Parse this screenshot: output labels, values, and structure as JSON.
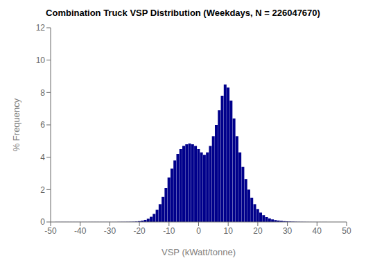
{
  "chart_data": {
    "type": "bar",
    "title": "Combination Truck VSP Distribution (Weekdays, N = 226047670)",
    "xlabel": "VSP (kWatt/tonne)",
    "ylabel": "% Frequency",
    "x": [
      -48,
      -47,
      -46,
      -45,
      -44,
      -43,
      -42,
      -41,
      -40,
      -39,
      -38,
      -37,
      -36,
      -35,
      -34,
      -33,
      -32,
      -31,
      -30,
      -29,
      -28,
      -27,
      -26,
      -25,
      -24,
      -23,
      -22,
      -21,
      -20,
      -19,
      -18,
      -17,
      -16,
      -15,
      -14,
      -13,
      -12,
      -11,
      -10,
      -9,
      -8,
      -7,
      -6,
      -5,
      -4,
      -3,
      -2,
      -1,
      0,
      1,
      2,
      3,
      4,
      5,
      6,
      7,
      8,
      9,
      10,
      11,
      12,
      13,
      14,
      15,
      16,
      17,
      18,
      19,
      20,
      21,
      22,
      23,
      24,
      25,
      26,
      27,
      28,
      29,
      30,
      31,
      32,
      33,
      34,
      35,
      36,
      37,
      38,
      39,
      40,
      41,
      42,
      43,
      44,
      45,
      46,
      47,
      48
    ],
    "values": [
      0.005,
      0.005,
      0.005,
      0.005,
      0.005,
      0.005,
      0.005,
      0.005,
      0.005,
      0.005,
      0.005,
      0.005,
      0.005,
      0.005,
      0.005,
      0.005,
      0.005,
      0.005,
      0.005,
      0.005,
      0.005,
      0.008,
      0.01,
      0.01,
      0.012,
      0.015,
      0.02,
      0.03,
      0.05,
      0.08,
      0.13,
      0.2,
      0.32,
      0.5,
      0.75,
      1.1,
      1.55,
      2.1,
      2.75,
      3.3,
      3.8,
      4.2,
      4.5,
      4.7,
      4.8,
      4.85,
      4.8,
      4.7,
      4.5,
      4.3,
      4.15,
      4.3,
      4.7,
      5.3,
      6.0,
      6.9,
      7.8,
      8.5,
      8.3,
      7.5,
      6.4,
      5.3,
      4.3,
      3.4,
      2.65,
      2.0,
      1.5,
      1.1,
      0.8,
      0.58,
      0.42,
      0.3,
      0.22,
      0.16,
      0.12,
      0.09,
      0.07,
      0.05,
      0.04,
      0.03,
      0.022,
      0.016,
      0.012,
      0.009,
      0.007,
      0.005,
      0.004,
      0.003,
      0.003,
      0.002,
      0.002,
      0.002,
      0.001,
      0.001,
      0.001,
      0.001,
      0.001
    ],
    "color": "#00008B",
    "xlim": [
      -50,
      50
    ],
    "ylim": [
      0,
      12
    ],
    "xticks": [
      -50,
      -40,
      -30,
      -20,
      -10,
      0,
      10,
      20,
      30,
      40,
      50
    ],
    "yticks": [
      0,
      2,
      4,
      6,
      8,
      10,
      12
    ],
    "grid": false
  }
}
